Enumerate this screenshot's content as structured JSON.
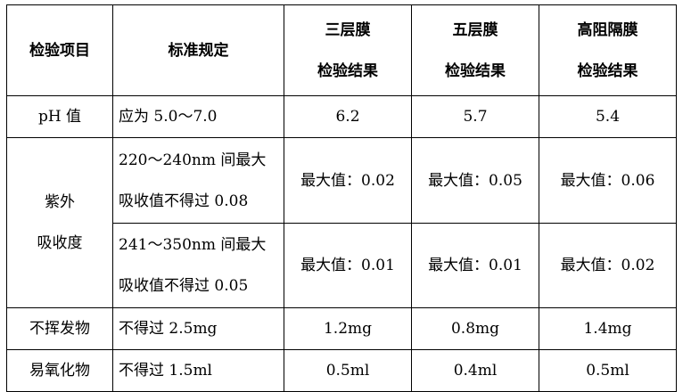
{
  "header": {
    "item": "检验项目",
    "standard": "标准规定",
    "col1": [
      "三层膜",
      "检验结果"
    ],
    "col2": [
      "五层膜",
      "检验结果"
    ],
    "col3": [
      "高阻隔膜",
      "检验结果"
    ]
  },
  "rows": {
    "ph": {
      "item": "pH 值",
      "standard": "应为 5.0～7.0",
      "values": [
        "6.2",
        "5.7",
        "5.4"
      ]
    },
    "uv": {
      "item": [
        "紫外",
        "吸收度"
      ],
      "sub1": {
        "standard": [
          "220～240nm 间最大",
          "吸收值不得过 0.08"
        ],
        "values": [
          "最大值：0.02",
          "最大值：0.05",
          "最大值：0.06"
        ]
      },
      "sub2": {
        "standard": [
          "241～350nm 间最大",
          "吸收值不得过 0.05"
        ],
        "values": [
          "最大值：0.01",
          "最大值：0.01",
          "最大值：0.02"
        ]
      }
    },
    "nonvolatile": {
      "item": "不挥发物",
      "standard": "不得过 2.5mg",
      "values": [
        "1.2mg",
        "0.8mg",
        "1.4mg"
      ]
    },
    "oxidizable": {
      "item": "易氧化物",
      "standard": "不得过 1.5ml",
      "values": [
        "0.5ml",
        "0.4ml",
        "0.5ml"
      ]
    }
  }
}
